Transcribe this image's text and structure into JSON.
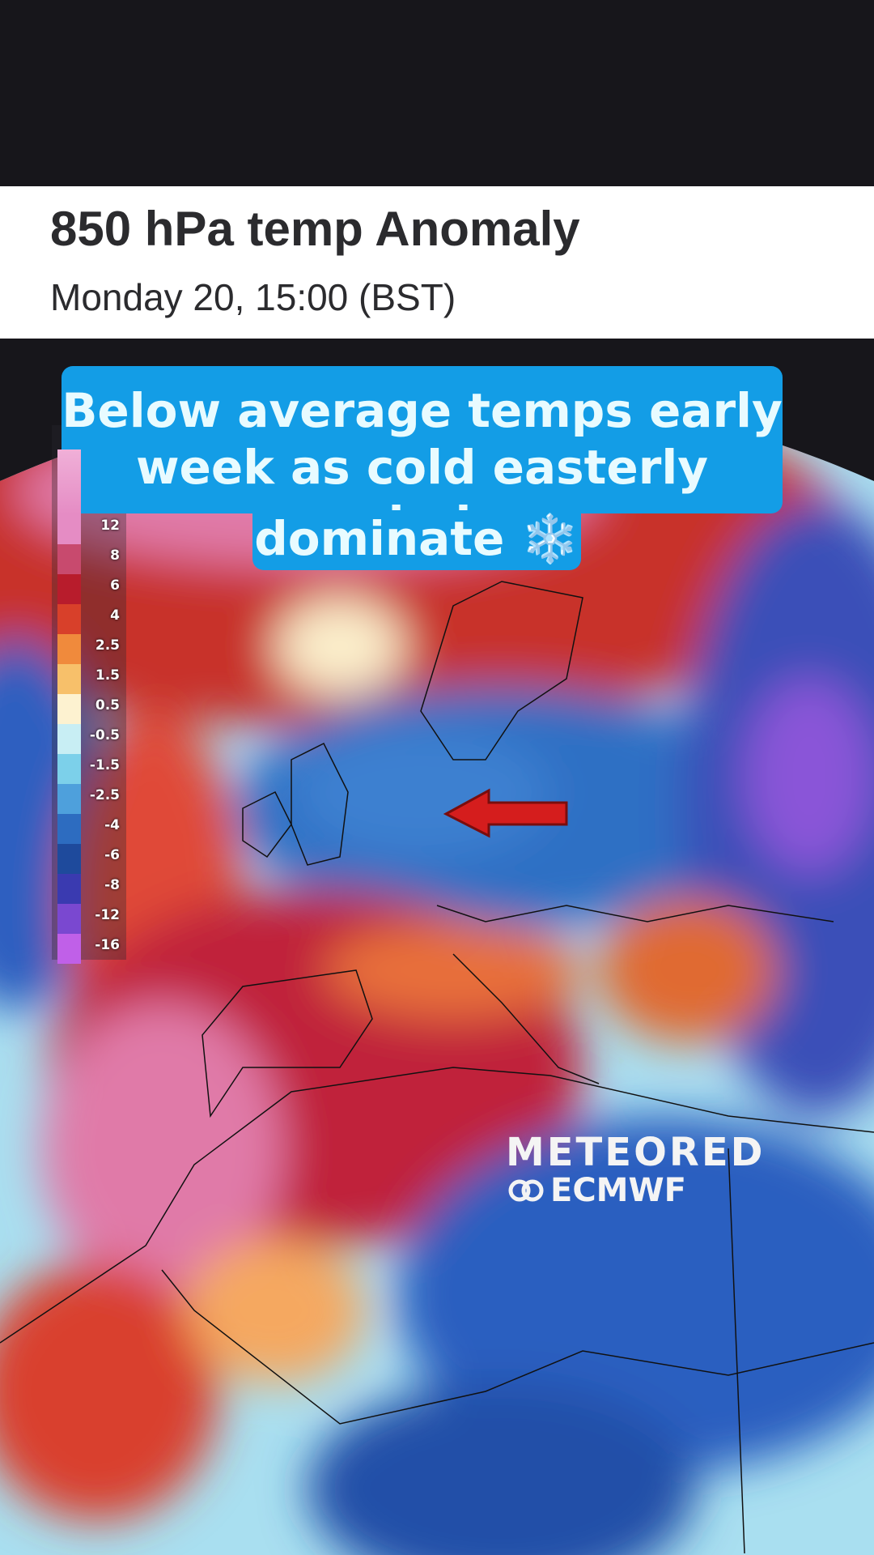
{
  "header": {
    "title": "850 hPa temp Anomaly",
    "subtitle": "Monday 20, 15:00 (BST)"
  },
  "caption": {
    "lines": [
      "Below average temps early",
      "week as cold easterly winds",
      "dominate ❄️"
    ]
  },
  "legend": {
    "items": [
      {
        "label": "12",
        "color": "#e58cc4"
      },
      {
        "label": "8",
        "color": "#c84a6e"
      },
      {
        "label": "6",
        "color": "#b81c2c"
      },
      {
        "label": "4",
        "color": "#d8402a"
      },
      {
        "label": "2.5",
        "color": "#f08a3c"
      },
      {
        "label": "1.5",
        "color": "#f7c06a"
      },
      {
        "label": "0.5",
        "color": "#fdf2d0"
      },
      {
        "label": "-0.5",
        "color": "#c8eef4"
      },
      {
        "label": "-1.5",
        "color": "#7cd0ea"
      },
      {
        "label": "-2.5",
        "color": "#4ea0dc"
      },
      {
        "label": "-4",
        "color": "#2d6cc0"
      },
      {
        "label": "-6",
        "color": "#1e4a9c"
      },
      {
        "label": "-8",
        "color": "#3a3ab0"
      },
      {
        "label": "-12",
        "color": "#7a48d0"
      },
      {
        "label": "-16",
        "color": "#c060e8"
      }
    ]
  },
  "logos": {
    "brand": "METEORED",
    "source": "ECMWF"
  }
}
